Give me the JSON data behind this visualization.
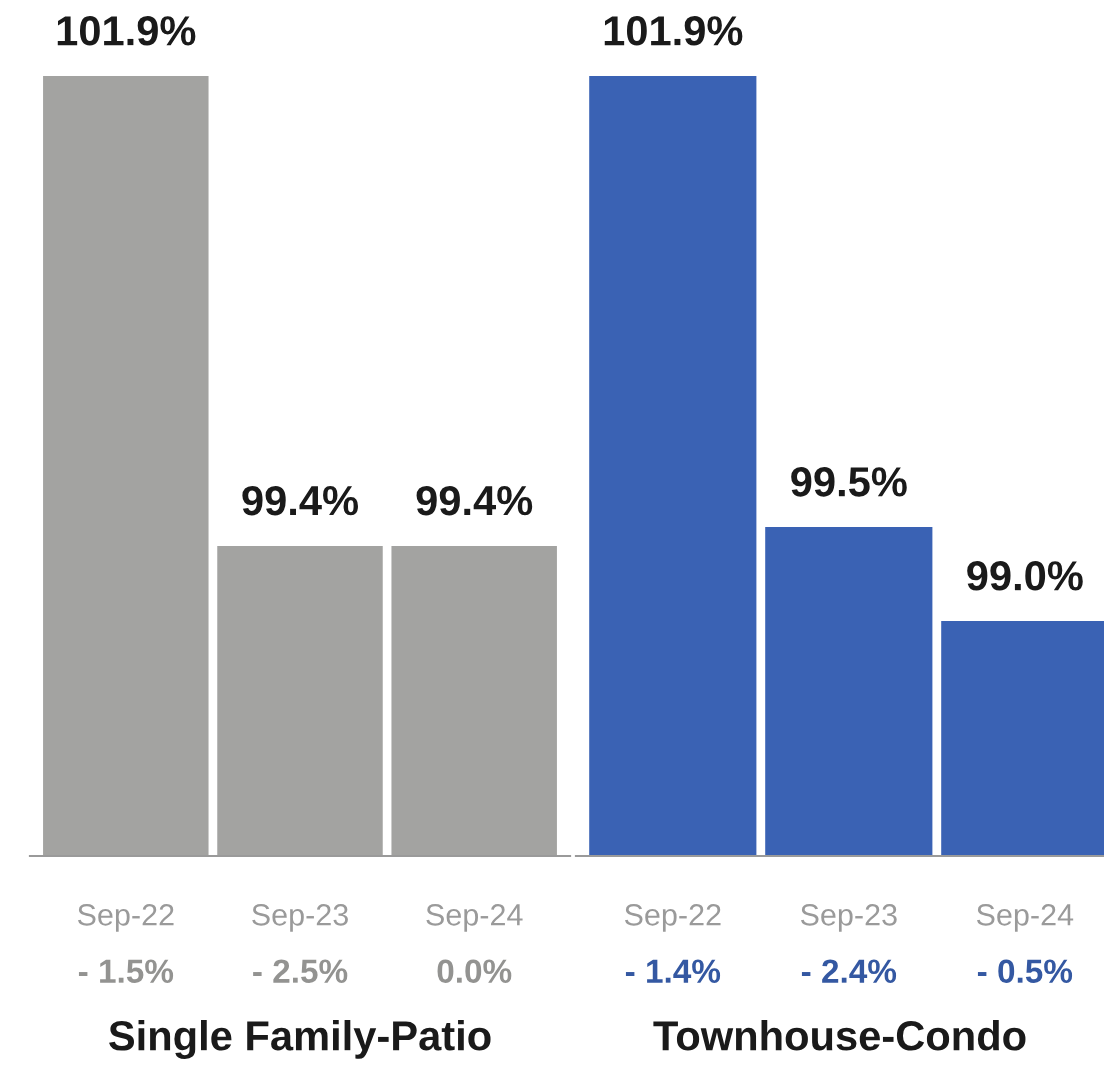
{
  "chart_data": [
    {
      "type": "bar",
      "xlabel": "Single Family-Patio",
      "categories": [
        "Sep-22",
        "Sep-23",
        "Sep-24"
      ],
      "values": [
        101.9,
        99.4,
        99.4
      ],
      "value_labels": [
        "101.9%",
        "99.4%",
        "99.4%"
      ],
      "color": "#a3a3a1",
      "ylim": [
        97.75,
        101.9
      ],
      "tick_labels": "x",
      "annotations": [
        "- 1.5%",
        "- 2.5%",
        "0.0%"
      ]
    },
    {
      "type": "bar",
      "xlabel": "Townhouse-Condo",
      "categories": [
        "Sep-22",
        "Sep-23",
        "Sep-24"
      ],
      "values": [
        101.9,
        99.5,
        99.0
      ],
      "value_labels": [
        "101.9%",
        "99.5%",
        "99.0%"
      ],
      "color": "#3a62b4",
      "ylim": [
        97.75,
        101.9
      ],
      "tick_labels": "x",
      "annotations": [
        "- 1.4%",
        "- 2.4%",
        "- 0.5%"
      ]
    }
  ]
}
